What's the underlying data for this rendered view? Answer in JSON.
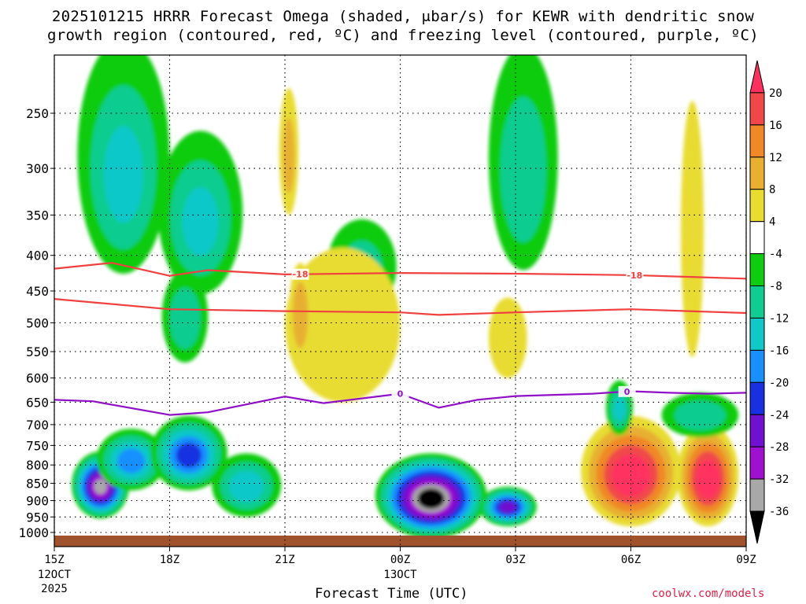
{
  "chart_data": {
    "type": "heatmap",
    "title_line1": "2025101215 HRRR Forecast Omega (shaded, μbar/s) for KEWR with dendritic snow",
    "title_line2": "growth region (contoured, red, ºC) and freezing level (contoured, purple, ºC)",
    "xlabel": "Forecast Time (UTC)",
    "credit": "coolwx.com/models",
    "pressure_levels": [
      "250",
      "300",
      "350",
      "400",
      "450",
      "500",
      "550",
      "600",
      "650",
      "700",
      "750",
      "800",
      "850",
      "900",
      "950",
      "1000"
    ],
    "pressure_values": [
      250,
      300,
      350,
      400,
      450,
      500,
      550,
      600,
      650,
      700,
      750,
      800,
      850,
      900,
      950,
      1000
    ],
    "time_ticks": [
      {
        "hour": 0,
        "label": "15Z",
        "sub1": "12OCT",
        "sub2": "2025"
      },
      {
        "hour": 3,
        "label": "18Z",
        "sub1": "",
        "sub2": ""
      },
      {
        "hour": 6,
        "label": "21Z",
        "sub1": "",
        "sub2": ""
      },
      {
        "hour": 9,
        "label": "00Z",
        "sub1": "13OCT",
        "sub2": ""
      },
      {
        "hour": 12,
        "label": "03Z",
        "sub1": "",
        "sub2": ""
      },
      {
        "hour": 15,
        "label": "06Z",
        "sub1": "",
        "sub2": ""
      },
      {
        "hour": 18,
        "label": "09Z",
        "sub1": "",
        "sub2": ""
      }
    ],
    "colorbar": {
      "labels": [
        "20",
        "16",
        "12",
        "8",
        "4",
        "-4",
        "-8",
        "-12",
        "-16",
        "-20",
        "-24",
        "-28",
        "-32",
        "-36"
      ],
      "colors": [
        "#ff3060",
        "#f04848",
        "#f08828",
        "#e8b030",
        "#e8dc30",
        "#ffffff",
        "#10cc10",
        "#10cc90",
        "#10c8c8",
        "#1890ff",
        "#1830e0",
        "#7010d0",
        "#a010d0",
        "#a8a8a8",
        "#000000"
      ]
    },
    "contours": {
      "dgz_label": "-18",
      "freezing_label": "0",
      "dgz_upper": [
        [
          0,
          418
        ],
        [
          1.5,
          410
        ],
        [
          3,
          428
        ],
        [
          4,
          420
        ],
        [
          6,
          426
        ],
        [
          9,
          424
        ],
        [
          12,
          425
        ],
        [
          15,
          427
        ],
        [
          18,
          432
        ]
      ],
      "dgz_lower": [
        [
          0,
          462
        ],
        [
          3,
          478
        ],
        [
          6,
          481
        ],
        [
          9,
          483
        ],
        [
          10,
          487
        ],
        [
          12,
          483
        ],
        [
          15,
          478
        ],
        [
          18,
          484
        ]
      ],
      "freezing": [
        [
          0,
          645
        ],
        [
          1,
          648
        ],
        [
          3,
          678
        ],
        [
          4,
          672
        ],
        [
          6,
          638
        ],
        [
          7,
          652
        ],
        [
          9,
          632
        ],
        [
          10,
          662
        ],
        [
          11,
          645
        ],
        [
          12,
          637
        ],
        [
          14,
          632
        ],
        [
          15,
          627
        ],
        [
          16,
          630
        ],
        [
          17,
          632
        ],
        [
          18,
          630
        ]
      ]
    },
    "omega_features": [
      {
        "t": 1.2,
        "p": 860,
        "rt": 0.75,
        "rp": 95,
        "v": -34
      },
      {
        "t": 2.0,
        "p": 790,
        "rt": 0.9,
        "rp": 80,
        "v": -18
      },
      {
        "t": 3.5,
        "p": 775,
        "rt": 1.0,
        "rp": 95,
        "v": -22
      },
      {
        "t": 5.0,
        "p": 860,
        "rt": 0.9,
        "rp": 90,
        "v": -14
      },
      {
        "t": 1.8,
        "p": 310,
        "rt": 1.2,
        "rp": 115,
        "v": -12
      },
      {
        "t": 3.8,
        "p": 360,
        "rt": 1.1,
        "rp": 95,
        "v": -12
      },
      {
        "t": 3.4,
        "p": 495,
        "rt": 0.6,
        "rp": 75,
        "v": -10
      },
      {
        "t": 6.1,
        "p": 290,
        "rt": 0.25,
        "rp": 60,
        "v": 8
      },
      {
        "t": 8.0,
        "p": 420,
        "rt": 0.9,
        "rp": 65,
        "v": -8
      },
      {
        "t": 9.8,
        "p": 895,
        "rt": 1.45,
        "rp": 125,
        "v": -40
      },
      {
        "t": 11.8,
        "p": 920,
        "rt": 0.75,
        "rp": 60,
        "v": -26
      },
      {
        "t": 12.2,
        "p": 310,
        "rt": 0.9,
        "rp": 110,
        "v": -10
      },
      {
        "t": 7.5,
        "p": 520,
        "rt": 1.5,
        "rp": 130,
        "v": 6
      },
      {
        "t": 6.4,
        "p": 490,
        "rt": 0.3,
        "rp": 80,
        "v": 10
      },
      {
        "t": 11.8,
        "p": 530,
        "rt": 0.5,
        "rp": 70,
        "v": 6
      },
      {
        "t": 15.0,
        "p": 830,
        "rt": 1.3,
        "rp": 150,
        "v": 24
      },
      {
        "t": 17.0,
        "p": 840,
        "rt": 0.8,
        "rp": 140,
        "v": 24
      },
      {
        "t": 16.6,
        "p": 400,
        "rt": 0.3,
        "rp": 160,
        "v": 6
      },
      {
        "t": 16.8,
        "p": 680,
        "rt": 1.0,
        "rp": 50,
        "v": -10
      },
      {
        "t": 14.7,
        "p": 665,
        "rt": 0.35,
        "rp": 60,
        "v": -12
      }
    ]
  }
}
